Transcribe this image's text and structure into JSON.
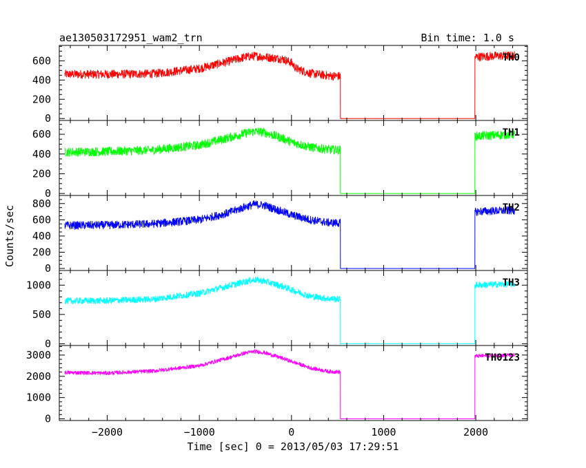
{
  "chart_data": {
    "type": "line",
    "title": "ae130503172951_wam2_trn",
    "bin_label": "Bin time: 1.0 s",
    "xlabel": "Time [sec] 0 = 2013/05/03 17:29:51",
    "ylabel": "Counts/sec",
    "xlim": [
      -2520,
      2560
    ],
    "x_ticks": [
      -2000,
      -1000,
      0,
      1000,
      2000
    ],
    "x_tick_labels": [
      "−2000",
      "−1000",
      "0",
      "1000",
      "2000"
    ],
    "panels": [
      {
        "name": "TH0",
        "color": "#ff0000",
        "ylim": [
          -20,
          760
        ],
        "y_ticks": [
          0,
          200,
          400,
          600
        ],
        "y_tick_labels": [
          "0",
          "200",
          "400",
          "600"
        ],
        "noise": 45,
        "x": [
          -2460,
          -2000,
          -1500,
          -1000,
          -700,
          -500,
          -400,
          -300,
          -100,
          0,
          50,
          200,
          400,
          530,
          531,
          1990,
          1991,
          2200,
          2420
        ],
        "y": [
          460,
          460,
          465,
          520,
          590,
          640,
          650,
          640,
          620,
          580,
          520,
          470,
          445,
          440,
          0,
          0,
          640,
          650,
          655
        ]
      },
      {
        "name": "TH1",
        "color": "#00ff00",
        "ylim": [
          -20,
          740
        ],
        "y_ticks": [
          0,
          200,
          400,
          600
        ],
        "y_tick_labels": [
          "0",
          "200",
          "400",
          "600"
        ],
        "noise": 45,
        "x": [
          -2460,
          -2000,
          -1500,
          -1000,
          -700,
          -500,
          -400,
          -300,
          -100,
          0,
          200,
          400,
          530,
          531,
          1990,
          1991,
          2200,
          2420
        ],
        "y": [
          420,
          425,
          440,
          490,
          560,
          610,
          630,
          620,
          560,
          520,
          470,
          445,
          440,
          0,
          0,
          580,
          590,
          600
        ]
      },
      {
        "name": "TH2",
        "color": "#0000ff",
        "ylim": [
          -25,
          900
        ],
        "y_ticks": [
          0,
          200,
          400,
          600,
          800
        ],
        "y_tick_labels": [
          "0",
          "200",
          "400",
          "600",
          "800"
        ],
        "noise": 50,
        "x": [
          -2460,
          -2000,
          -1500,
          -1000,
          -700,
          -500,
          -400,
          -300,
          -100,
          0,
          200,
          400,
          530,
          531,
          1990,
          1991,
          2200,
          2420
        ],
        "y": [
          530,
          535,
          550,
          600,
          680,
          760,
          790,
          780,
          700,
          660,
          600,
          565,
          560,
          0,
          0,
          700,
          710,
          715
        ]
      },
      {
        "name": "TH3",
        "color": "#00ffff",
        "ylim": [
          -30,
          1250
        ],
        "y_ticks": [
          0,
          500,
          1000
        ],
        "y_tick_labels": [
          "0",
          "500",
          "1000"
        ],
        "noise": 55,
        "x": [
          -2460,
          -2000,
          -1500,
          -1000,
          -700,
          -500,
          -400,
          -300,
          -100,
          0,
          200,
          400,
          530,
          531,
          1990,
          1991,
          2200,
          2420
        ],
        "y": [
          730,
          735,
          760,
          860,
          980,
          1060,
          1090,
          1070,
          980,
          920,
          810,
          770,
          760,
          0,
          0,
          1000,
          1010,
          1020
        ]
      },
      {
        "name": "TH0123",
        "color": "#ff00ff",
        "ylim": [
          -80,
          3450
        ],
        "y_ticks": [
          0,
          1000,
          2000,
          3000
        ],
        "y_tick_labels": [
          "0",
          "1000",
          "2000",
          "3000"
        ],
        "noise": 90,
        "x": [
          -2460,
          -2000,
          -1500,
          -1000,
          -700,
          -500,
          -400,
          -300,
          -100,
          0,
          200,
          400,
          530,
          531,
          1990,
          1991,
          2200,
          2420
        ],
        "y": [
          2180,
          2150,
          2250,
          2500,
          2850,
          3100,
          3170,
          3120,
          2850,
          2700,
          2400,
          2230,
          2200,
          0,
          0,
          2950,
          2980,
          3000
        ]
      }
    ]
  }
}
